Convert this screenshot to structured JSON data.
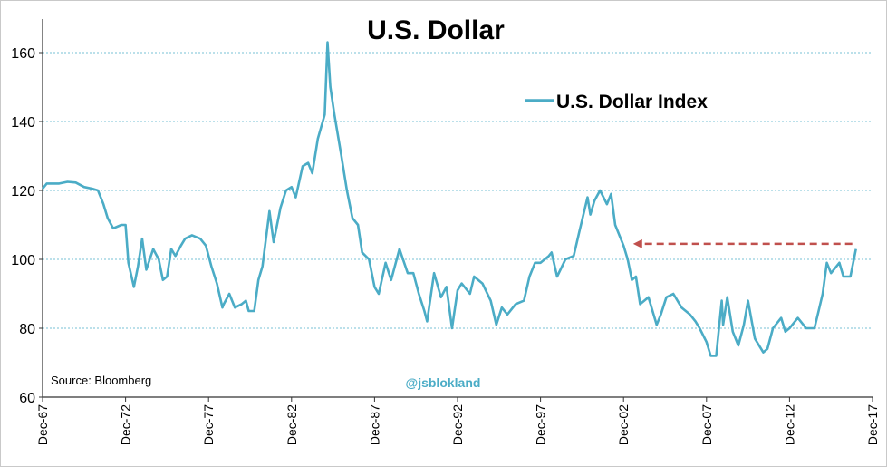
{
  "chart_data": {
    "type": "line",
    "title": "U.S. Dollar",
    "xlabel": "",
    "ylabel": "",
    "ylim": [
      60,
      170
    ],
    "y_ticks": [
      60,
      80,
      100,
      120,
      140,
      160
    ],
    "x_ticks": [
      "Dec-67",
      "Dec-72",
      "Dec-77",
      "Dec-82",
      "Dec-87",
      "Dec-92",
      "Dec-97",
      "Dec-02",
      "Dec-07",
      "Dec-12",
      "Dec-17"
    ],
    "grid": "horizontal dashed",
    "legend": {
      "position": "top-right",
      "entries": [
        "U.S. Dollar Index"
      ]
    },
    "series": [
      {
        "name": "U.S. Dollar Index",
        "color": "#4bacc6",
        "points": [
          [
            "1967-12",
            120.5
          ],
          [
            "1968-03",
            122
          ],
          [
            "1968-12",
            122
          ],
          [
            "1969-06",
            122.5
          ],
          [
            "1969-12",
            122.3
          ],
          [
            "1970-06",
            121
          ],
          [
            "1970-12",
            120.5
          ],
          [
            "1971-04",
            120
          ],
          [
            "1971-08",
            116
          ],
          [
            "1971-11",
            112
          ],
          [
            "1972-03",
            109
          ],
          [
            "1972-09",
            110
          ],
          [
            "1972-12",
            110
          ],
          [
            "1973-02",
            99
          ],
          [
            "1973-06",
            92
          ],
          [
            "1973-09",
            98
          ],
          [
            "1973-12",
            106
          ],
          [
            "1974-03",
            97
          ],
          [
            "1974-08",
            103
          ],
          [
            "1974-12",
            100
          ],
          [
            "1975-03",
            94
          ],
          [
            "1975-06",
            95
          ],
          [
            "1975-09",
            103
          ],
          [
            "1975-12",
            101
          ],
          [
            "1976-04",
            104
          ],
          [
            "1976-07",
            106
          ],
          [
            "1976-12",
            107
          ],
          [
            "1977-06",
            106
          ],
          [
            "1977-10",
            104
          ],
          [
            "1978-02",
            98
          ],
          [
            "1978-06",
            93
          ],
          [
            "1978-10",
            86
          ],
          [
            "1978-11",
            87
          ],
          [
            "1979-03",
            90
          ],
          [
            "1979-07",
            86
          ],
          [
            "1979-12",
            87
          ],
          [
            "1980-03",
            88
          ],
          [
            "1980-05",
            85
          ],
          [
            "1980-09",
            85
          ],
          [
            "1980-12",
            94
          ],
          [
            "1981-03",
            98
          ],
          [
            "1981-08",
            114
          ],
          [
            "1981-11",
            105
          ],
          [
            "1982-04",
            115
          ],
          [
            "1982-08",
            120
          ],
          [
            "1982-12",
            121
          ],
          [
            "1983-03",
            118
          ],
          [
            "1983-08",
            127
          ],
          [
            "1983-12",
            128
          ],
          [
            "1984-03",
            125
          ],
          [
            "1984-07",
            135
          ],
          [
            "1984-12",
            142
          ],
          [
            "1985-02",
            163
          ],
          [
            "1985-04",
            150
          ],
          [
            "1985-07",
            142
          ],
          [
            "1985-12",
            130
          ],
          [
            "1986-04",
            120
          ],
          [
            "1986-08",
            112
          ],
          [
            "1986-12",
            110
          ],
          [
            "1987-03",
            102
          ],
          [
            "1987-08",
            100
          ],
          [
            "1987-12",
            92
          ],
          [
            "1988-03",
            90
          ],
          [
            "1988-08",
            99
          ],
          [
            "1988-12",
            94
          ],
          [
            "1989-06",
            103
          ],
          [
            "1989-12",
            96
          ],
          [
            "1990-04",
            96
          ],
          [
            "1990-08",
            90
          ],
          [
            "1990-12",
            85
          ],
          [
            "1991-02",
            82
          ],
          [
            "1991-07",
            96
          ],
          [
            "1991-12",
            89
          ],
          [
            "1992-04",
            92
          ],
          [
            "1992-08",
            80
          ],
          [
            "1992-12",
            91
          ],
          [
            "1993-03",
            93
          ],
          [
            "1993-09",
            90
          ],
          [
            "1993-12",
            95
          ],
          [
            "1994-06",
            93
          ],
          [
            "1994-12",
            88
          ],
          [
            "1995-04",
            81
          ],
          [
            "1995-08",
            86
          ],
          [
            "1995-12",
            84
          ],
          [
            "1996-06",
            87
          ],
          [
            "1996-12",
            88
          ],
          [
            "1997-04",
            95
          ],
          [
            "1997-08",
            99
          ],
          [
            "1997-12",
            99
          ],
          [
            "1998-06",
            101
          ],
          [
            "1998-08",
            102
          ],
          [
            "1998-12",
            95
          ],
          [
            "1999-06",
            100
          ],
          [
            "1999-12",
            101
          ],
          [
            "2000-04",
            108
          ],
          [
            "2000-10",
            118
          ],
          [
            "2000-12",
            113
          ],
          [
            "2001-03",
            117
          ],
          [
            "2001-07",
            120
          ],
          [
            "2001-12",
            116
          ],
          [
            "2002-03",
            119
          ],
          [
            "2002-06",
            110
          ],
          [
            "2002-12",
            104
          ],
          [
            "2003-03",
            100
          ],
          [
            "2003-06",
            94
          ],
          [
            "2003-09",
            95
          ],
          [
            "2003-12",
            87
          ],
          [
            "2004-03",
            88
          ],
          [
            "2004-06",
            89
          ],
          [
            "2004-12",
            81
          ],
          [
            "2005-03",
            84
          ],
          [
            "2005-07",
            89
          ],
          [
            "2005-12",
            90
          ],
          [
            "2006-06",
            86
          ],
          [
            "2006-12",
            84
          ],
          [
            "2007-04",
            82
          ],
          [
            "2007-07",
            80
          ],
          [
            "2007-12",
            76
          ],
          [
            "2008-03",
            72
          ],
          [
            "2008-07",
            72
          ],
          [
            "2008-11",
            88
          ],
          [
            "2008-12",
            81
          ],
          [
            "2009-03",
            89
          ],
          [
            "2009-07",
            79
          ],
          [
            "2009-11",
            75
          ],
          [
            "2010-03",
            81
          ],
          [
            "2010-06",
            88
          ],
          [
            "2010-11",
            77
          ],
          [
            "2011-05",
            73
          ],
          [
            "2011-08",
            74
          ],
          [
            "2011-12",
            80
          ],
          [
            "2012-06",
            83
          ],
          [
            "2012-09",
            79
          ],
          [
            "2012-12",
            80
          ],
          [
            "2013-06",
            83
          ],
          [
            "2013-12",
            80
          ],
          [
            "2014-06",
            80
          ],
          [
            "2014-09",
            85
          ],
          [
            "2014-12",
            90
          ],
          [
            "2015-03",
            99
          ],
          [
            "2015-06",
            96
          ],
          [
            "2015-12",
            99
          ],
          [
            "2016-03",
            95
          ],
          [
            "2016-08",
            95
          ],
          [
            "2016-11",
            101
          ],
          [
            "2016-12",
            103
          ]
        ]
      }
    ],
    "annotation": {
      "type": "arrow",
      "color": "#c0504d",
      "style": "dashed",
      "y": 104.5,
      "from": "2016-12",
      "to": "2003-03"
    },
    "source_text": "Source:  Bloomberg",
    "watermark": "@jsblokland",
    "colors": {
      "line": "#4bacc6",
      "grid": "#4bacc6",
      "arrow": "#c0504d",
      "watermark": "#4bacc6"
    }
  }
}
